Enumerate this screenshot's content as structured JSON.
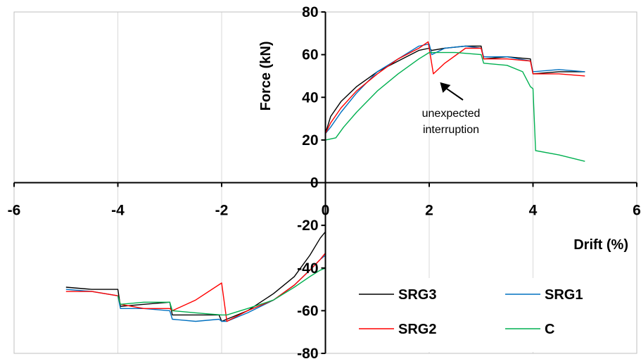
{
  "chart_data": {
    "type": "line",
    "xlabel": "Drift (%)",
    "ylabel": "Force (kN)",
    "xlim": [
      -6,
      6
    ],
    "ylim": [
      -80,
      80
    ],
    "xticks": [
      -6,
      -4,
      -2,
      0,
      2,
      4,
      6
    ],
    "yticks": [
      -80,
      -60,
      -40,
      -20,
      0,
      20,
      40,
      60,
      80
    ],
    "grid": "vertical",
    "legend": "bottom-right",
    "annotation": {
      "text": [
        "unexpected",
        "interruption"
      ],
      "points_to": [
        2.1,
        51
      ]
    },
    "series": [
      {
        "name": "SRG3",
        "color": "#000000",
        "positive": [
          [
            0,
            23
          ],
          [
            0.1,
            31
          ],
          [
            0.3,
            38
          ],
          [
            0.6,
            45
          ],
          [
            1.0,
            52
          ],
          [
            1.4,
            57
          ],
          [
            1.8,
            62
          ],
          [
            2.0,
            63
          ],
          [
            2.05,
            62
          ],
          [
            2.3,
            63
          ],
          [
            2.7,
            64
          ],
          [
            3.0,
            64
          ],
          [
            3.05,
            58
          ],
          [
            3.5,
            59
          ],
          [
            3.95,
            58
          ],
          [
            4.0,
            51
          ],
          [
            4.5,
            52
          ],
          [
            5.0,
            52
          ]
        ],
        "negative": [
          [
            0,
            -23
          ],
          [
            -0.1,
            -26
          ],
          [
            -0.3,
            -34
          ],
          [
            -0.6,
            -44
          ],
          [
            -1.0,
            -52
          ],
          [
            -1.5,
            -60
          ],
          [
            -1.9,
            -64
          ],
          [
            -2.0,
            -65
          ],
          [
            -2.05,
            -62
          ],
          [
            -2.5,
            -62
          ],
          [
            -2.95,
            -62
          ],
          [
            -3.0,
            -56
          ],
          [
            -3.5,
            -57
          ],
          [
            -3.95,
            -58
          ],
          [
            -4.0,
            -50
          ],
          [
            -4.5,
            -50
          ],
          [
            -5.0,
            -49
          ]
        ]
      },
      {
        "name": "SRG1",
        "color": "#0070C0",
        "positive": [
          [
            0,
            23
          ],
          [
            0.1,
            26
          ],
          [
            0.3,
            33
          ],
          [
            0.6,
            42
          ],
          [
            1.0,
            52
          ],
          [
            1.4,
            58
          ],
          [
            1.8,
            64
          ],
          [
            2.0,
            65
          ],
          [
            2.05,
            60
          ],
          [
            2.3,
            63
          ],
          [
            2.7,
            64
          ],
          [
            3.0,
            63
          ],
          [
            3.05,
            59
          ],
          [
            3.5,
            59
          ],
          [
            3.95,
            57
          ],
          [
            4.0,
            52
          ],
          [
            4.5,
            53
          ],
          [
            5.0,
            52
          ]
        ],
        "negative": [
          [
            0,
            -34
          ],
          [
            -0.1,
            -36
          ],
          [
            -0.3,
            -41
          ],
          [
            -0.6,
            -48
          ],
          [
            -1.0,
            -55
          ],
          [
            -1.5,
            -61
          ],
          [
            -1.9,
            -65
          ],
          [
            -2.0,
            -65
          ],
          [
            -2.05,
            -64
          ],
          [
            -2.5,
            -65
          ],
          [
            -2.95,
            -64
          ],
          [
            -3.0,
            -60
          ],
          [
            -3.5,
            -59
          ],
          [
            -3.95,
            -59
          ],
          [
            -4.0,
            -53
          ],
          [
            -4.5,
            -51
          ],
          [
            -5.0,
            -50
          ]
        ]
      },
      {
        "name": "SRG2",
        "color": "#FF0000",
        "positive": [
          [
            0,
            23
          ],
          [
            0.1,
            28
          ],
          [
            0.3,
            35
          ],
          [
            0.6,
            43
          ],
          [
            1.0,
            51
          ],
          [
            1.4,
            58
          ],
          [
            1.8,
            63
          ],
          [
            1.98,
            66
          ],
          [
            2.08,
            51
          ],
          [
            2.3,
            56
          ],
          [
            2.7,
            63
          ],
          [
            3.0,
            63
          ],
          [
            3.05,
            58
          ],
          [
            3.5,
            58
          ],
          [
            3.95,
            57
          ],
          [
            4.0,
            51
          ],
          [
            4.5,
            51
          ],
          [
            5.0,
            50
          ]
        ],
        "negative": [
          [
            0,
            -33
          ],
          [
            -0.1,
            -36
          ],
          [
            -0.3,
            -41
          ],
          [
            -0.6,
            -48
          ],
          [
            -1.0,
            -55
          ],
          [
            -1.5,
            -60
          ],
          [
            -1.9,
            -65
          ],
          [
            -2.0,
            -47
          ],
          [
            -2.5,
            -55
          ],
          [
            -2.95,
            -60
          ],
          [
            -3.0,
            -59
          ],
          [
            -3.5,
            -59
          ],
          [
            -3.95,
            -57
          ],
          [
            -4.0,
            -53
          ],
          [
            -4.5,
            -51
          ],
          [
            -5.0,
            -51
          ]
        ]
      },
      {
        "name": "C",
        "color": "#00B050",
        "positive": [
          [
            0,
            20
          ],
          [
            0.2,
            21
          ],
          [
            0.35,
            26
          ],
          [
            0.6,
            33
          ],
          [
            1.0,
            43
          ],
          [
            1.4,
            51
          ],
          [
            1.8,
            58
          ],
          [
            2.0,
            61
          ],
          [
            2.5,
            61
          ],
          [
            3.0,
            60
          ],
          [
            3.05,
            56
          ],
          [
            3.5,
            55
          ],
          [
            3.8,
            52
          ],
          [
            3.95,
            45
          ],
          [
            4.0,
            44
          ],
          [
            4.05,
            15
          ],
          [
            4.5,
            13
          ],
          [
            5.0,
            10
          ]
        ],
        "negative": [
          [
            0,
            -40
          ],
          [
            -0.1,
            -41
          ],
          [
            -0.3,
            -44
          ],
          [
            -0.6,
            -49
          ],
          [
            -1.0,
            -55
          ],
          [
            -1.5,
            -59
          ],
          [
            -1.9,
            -62
          ],
          [
            -2.0,
            -62
          ],
          [
            -2.5,
            -61
          ],
          [
            -2.95,
            -60
          ],
          [
            -3.0,
            -56
          ],
          [
            -3.5,
            -56
          ],
          [
            -3.95,
            -57
          ],
          [
            -4.0,
            -53
          ]
        ]
      }
    ]
  }
}
